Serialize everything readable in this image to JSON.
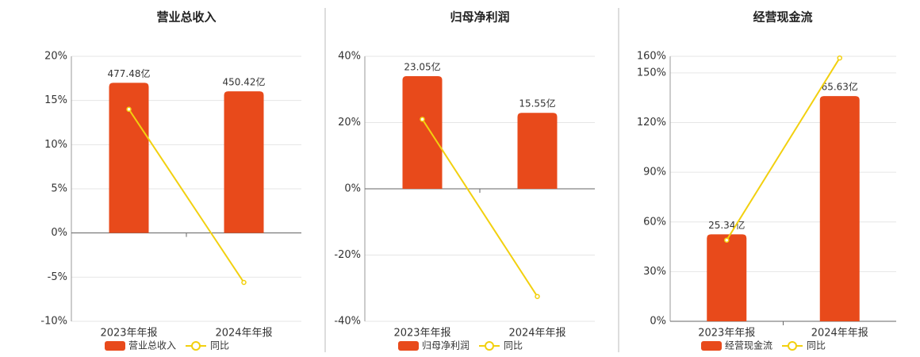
{
  "chart_data": [
    {
      "type": "bar",
      "title": "营业总收入",
      "categories": [
        "2023年年报",
        "2024年年报"
      ],
      "series": [
        {
          "name": "营业总收入",
          "color": "#e84a1b",
          "values": [
            477.48,
            450.42
          ],
          "value_labels": [
            "477.48亿",
            "450.42亿"
          ]
        },
        {
          "name": "同比",
          "type": "line",
          "color": "#f2d00f",
          "values": [
            14,
            -5.6
          ]
        }
      ],
      "ylim": [
        -10,
        20
      ],
      "yticks": [
        {
          "value": -10,
          "label": "-10%"
        },
        {
          "value": -5,
          "label": "-5%"
        },
        {
          "value": 0,
          "label": "0%"
        },
        {
          "value": 5,
          "label": "5%"
        },
        {
          "value": 10,
          "label": "10%"
        },
        {
          "value": 15,
          "label": "15%"
        },
        {
          "value": 20,
          "label": "20%"
        }
      ],
      "grid": true
    },
    {
      "type": "bar",
      "title": "归母净利润",
      "categories": [
        "2023年年报",
        "2024年年报"
      ],
      "series": [
        {
          "name": "归母净利润",
          "color": "#e84a1b",
          "values": [
            23.05,
            15.55
          ],
          "value_labels": [
            "23.05亿",
            "15.55亿"
          ]
        },
        {
          "name": "同比",
          "type": "line",
          "color": "#f2d00f",
          "values": [
            21,
            -32.5
          ]
        }
      ],
      "ylim": [
        -40,
        40
      ],
      "yticks": [
        {
          "value": -40,
          "label": "-40%"
        },
        {
          "value": -20,
          "label": "-20%"
        },
        {
          "value": 0,
          "label": "0%"
        },
        {
          "value": 20,
          "label": "20%"
        },
        {
          "value": 40,
          "label": "40%"
        }
      ],
      "grid": true
    },
    {
      "type": "bar",
      "title": "经营现金流",
      "categories": [
        "2023年年报",
        "2024年年报"
      ],
      "series": [
        {
          "name": "经营现金流",
          "color": "#e84a1b",
          "values": [
            25.34,
            65.63
          ],
          "value_labels": [
            "25.34亿",
            "65.63亿"
          ]
        },
        {
          "name": "同比",
          "type": "line",
          "color": "#f2d00f",
          "values": [
            49,
            159
          ]
        }
      ],
      "ylim": [
        0,
        160
      ],
      "yticks": [
        {
          "value": 0,
          "label": "0%"
        },
        {
          "value": 30,
          "label": "30%"
        },
        {
          "value": 60,
          "label": "60%"
        },
        {
          "value": 90,
          "label": "90%"
        },
        {
          "value": 120,
          "label": "120%"
        },
        {
          "value": 150,
          "label": "150%"
        },
        {
          "value": 160,
          "label": "160%"
        }
      ],
      "grid": true
    }
  ]
}
